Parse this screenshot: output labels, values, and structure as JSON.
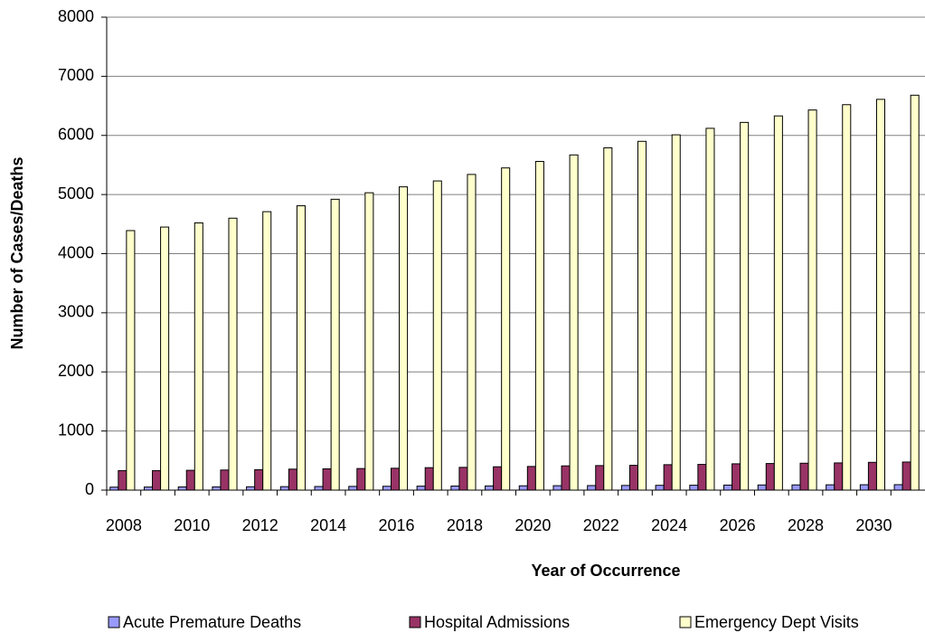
{
  "chart_data": {
    "type": "bar",
    "x_label": "Year of Occurrence",
    "y_label": "Number of Cases/Deaths",
    "categories": [
      "2008",
      null,
      "2010",
      null,
      "2012",
      null,
      "2014",
      null,
      "2016",
      null,
      "2018",
      null,
      "2020",
      null,
      "2022",
      null,
      "2024",
      null,
      "2026",
      null,
      "2028",
      null,
      "2030",
      null
    ],
    "series": [
      {
        "name": "Acute Premature Deaths",
        "color": "#9999ff",
        "values": [
          50,
          52,
          54,
          55,
          57,
          59,
          61,
          63,
          65,
          67,
          69,
          71,
          73,
          75,
          77,
          79,
          81,
          83,
          85,
          87,
          88,
          90,
          91,
          92
        ]
      },
      {
        "name": "Hospital Admissions",
        "color": "#993366",
        "values": [
          330,
          330,
          335,
          340,
          345,
          355,
          360,
          365,
          370,
          380,
          385,
          395,
          400,
          410,
          415,
          420,
          430,
          435,
          445,
          450,
          455,
          460,
          470,
          475
        ]
      },
      {
        "name": "Emergency Dept Visits",
        "color": "#ffffcc",
        "values": [
          4390,
          4450,
          4520,
          4600,
          4710,
          4810,
          4920,
          5030,
          5130,
          5230,
          5340,
          5450,
          5560,
          5670,
          5790,
          5900,
          6010,
          6120,
          6220,
          6330,
          6430,
          6520,
          6610,
          6680
        ]
      }
    ],
    "ylim": [
      0,
      8000
    ],
    "yticks": [
      0,
      1000,
      2000,
      3000,
      4000,
      5000,
      6000,
      7000,
      8000
    ],
    "grid": true,
    "legend": "bottom"
  }
}
